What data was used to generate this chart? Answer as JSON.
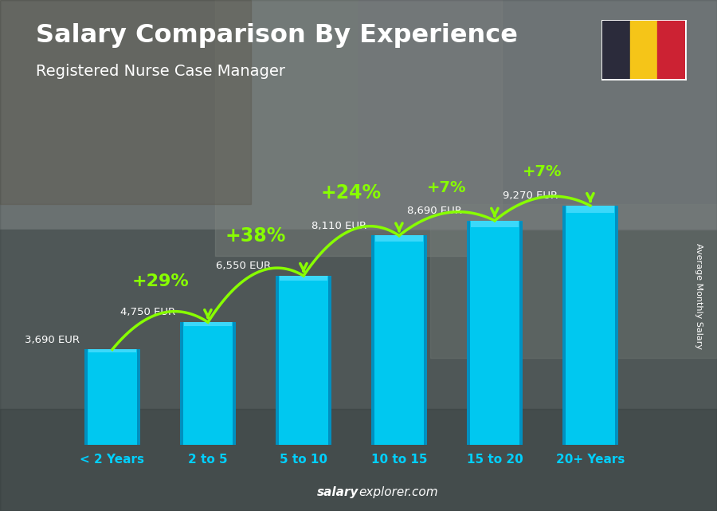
{
  "title": "Salary Comparison By Experience",
  "subtitle": "Registered Nurse Case Manager",
  "categories": [
    "< 2 Years",
    "2 to 5",
    "5 to 10",
    "10 to 15",
    "15 to 20",
    "20+ Years"
  ],
  "values": [
    3690,
    4750,
    6550,
    8110,
    8690,
    9270
  ],
  "value_labels": [
    "3,690 EUR",
    "4,750 EUR",
    "6,550 EUR",
    "8,110 EUR",
    "8,690 EUR",
    "9,270 EUR"
  ],
  "pct_changes": [
    "+29%",
    "+38%",
    "+24%",
    "+7%",
    "+7%"
  ],
  "bar_color_main": "#00c8f0",
  "bar_color_dark": "#0090c0",
  "bar_color_light": "#55dfff",
  "background_color": "#6a7a80",
  "title_color": "#ffffff",
  "subtitle_color": "#ffffff",
  "label_color": "#ffffff",
  "xtick_color": "#00d0ff",
  "pct_color": "#88ff00",
  "arrow_color": "#88ff00",
  "ylabel": "Average Monthly Salary",
  "footer_bold": "salary",
  "footer_normal": "explorer.com",
  "flag_colors": [
    "#2b2b3b",
    "#f5c518",
    "#cc2233"
  ],
  "ylim": [
    0,
    11500
  ],
  "value_label_color": "#ffffff",
  "value_label_left_color": "#dddddd"
}
